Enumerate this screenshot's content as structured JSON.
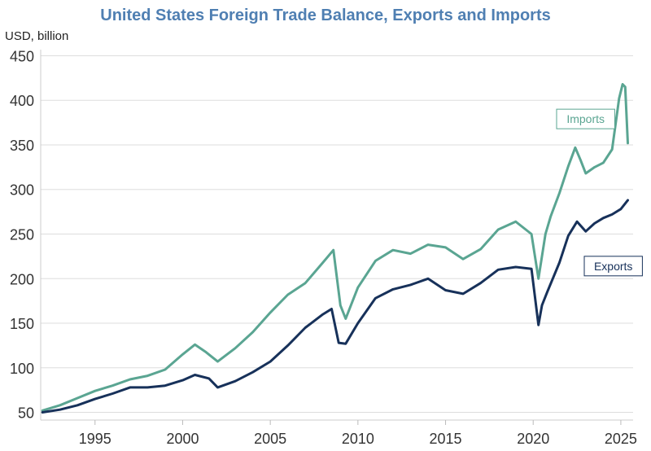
{
  "chart_data": {
    "type": "line",
    "title": "United States Foreign Trade Balance, Exports and Imports",
    "ylabel": "USD, billion",
    "xlabel": "",
    "xlim": [
      1991.9,
      2025.7
    ],
    "ylim": [
      45,
      455
    ],
    "yticks": [
      50,
      100,
      150,
      200,
      250,
      300,
      350,
      400,
      450
    ],
    "xticks": [
      1995,
      2000,
      2005,
      2010,
      2015,
      2020,
      2025
    ],
    "grid": "horizontal",
    "series": [
      {
        "name": "Imports",
        "color": "#5aa592",
        "label_box": "upper-right",
        "x": [
          1992.0,
          1993.0,
          1994.0,
          1995.0,
          1996.0,
          1997.0,
          1998.0,
          1999.0,
          2000.0,
          2000.7,
          2001.3,
          2002.0,
          2003.0,
          2004.0,
          2005.0,
          2006.0,
          2007.0,
          2008.0,
          2008.6,
          2009.0,
          2009.3,
          2010.0,
          2011.0,
          2012.0,
          2013.0,
          2014.0,
          2015.0,
          2016.0,
          2017.0,
          2018.0,
          2019.0,
          2019.9,
          2020.3,
          2020.7,
          2021.0,
          2021.5,
          2022.0,
          2022.4,
          2022.7,
          2023.0,
          2023.5,
          2024.0,
          2024.5,
          2024.9,
          2025.1,
          2025.25,
          2025.4
        ],
        "values": [
          52,
          58,
          66,
          74,
          80,
          87,
          91,
          98,
          115,
          126,
          118,
          107,
          122,
          140,
          162,
          182,
          195,
          218,
          232,
          170,
          155,
          190,
          220,
          232,
          228,
          238,
          235,
          222,
          233,
          255,
          264,
          250,
          200,
          250,
          270,
          296,
          326,
          347,
          333,
          318,
          325,
          330,
          345,
          402,
          418,
          415,
          352
        ]
      },
      {
        "name": "Exports",
        "color": "#17315a",
        "label_box": "right",
        "x": [
          1992.0,
          1993.0,
          1994.0,
          1995.0,
          1996.0,
          1997.0,
          1998.0,
          1999.0,
          2000.0,
          2000.7,
          2001.5,
          2002.0,
          2003.0,
          2004.0,
          2005.0,
          2006.0,
          2007.0,
          2008.0,
          2008.5,
          2008.9,
          2009.3,
          2010.0,
          2011.0,
          2012.0,
          2013.0,
          2014.0,
          2015.0,
          2016.0,
          2017.0,
          2018.0,
          2019.0,
          2019.9,
          2020.3,
          2020.5,
          2020.8,
          2021.5,
          2022.0,
          2022.5,
          2023.0,
          2023.5,
          2024.0,
          2024.5,
          2025.0,
          2025.4
        ],
        "values": [
          50,
          53,
          58,
          65,
          71,
          78,
          78,
          80,
          86,
          92,
          88,
          78,
          85,
          95,
          107,
          125,
          145,
          160,
          166,
          128,
          127,
          150,
          178,
          188,
          193,
          200,
          187,
          183,
          195,
          210,
          213,
          211,
          148,
          170,
          185,
          218,
          248,
          264,
          253,
          262,
          268,
          272,
          278,
          288
        ]
      }
    ]
  }
}
